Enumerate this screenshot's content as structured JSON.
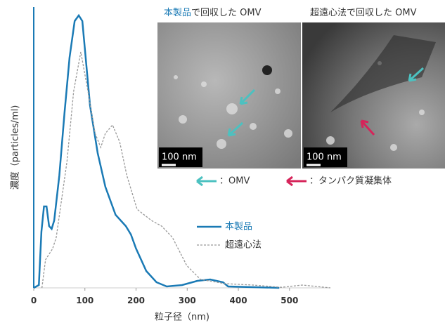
{
  "chart_data": {
    "type": "line",
    "xlabel": "粒子径（nm)",
    "ylabel": "濃度（particles/ml)",
    "xlim": [
      0,
      580
    ],
    "xticks": [
      0,
      100,
      200,
      300,
      400,
      500
    ],
    "ylim": [
      0,
      100
    ],
    "series": [
      {
        "name": "本製品",
        "color": "#1a7ab5",
        "style": "solid",
        "x": [
          0,
          10,
          15,
          20,
          25,
          30,
          35,
          40,
          50,
          60,
          70,
          80,
          88,
          95,
          100,
          110,
          125,
          140,
          160,
          180,
          190,
          200,
          220,
          240,
          260,
          290,
          320,
          345,
          370,
          380,
          480
        ],
        "values": [
          0,
          1,
          20,
          29,
          29,
          22,
          21,
          24,
          40,
          62,
          82,
          95,
          97,
          95,
          85,
          65,
          48,
          36,
          26,
          22,
          19,
          14,
          6,
          2,
          0.5,
          1,
          2.5,
          3,
          2,
          0.5,
          0
        ]
      },
      {
        "name": "超遠心法",
        "color": "#999999",
        "style": "dashed",
        "x": [
          16,
          23,
          37,
          44,
          65,
          78,
          92,
          106,
          120,
          131,
          140,
          154,
          168,
          182,
          202,
          230,
          250,
          271,
          299,
          326,
          374,
          429,
          484,
          525,
          580
        ],
        "values": [
          0,
          10,
          14,
          18,
          45,
          70,
          84,
          70,
          55,
          50,
          55,
          58,
          52,
          40,
          28,
          24,
          22,
          18,
          8,
          3,
          1.5,
          1,
          0.2,
          1,
          0
        ]
      }
    ]
  },
  "insets": {
    "left_title": {
      "highlight": "本製品",
      "rest": "で回収した OMV"
    },
    "right_title": "超遠心法で回収した OMV",
    "scale_bar": "100 nm",
    "arrow_legend": [
      "：OMV",
      "：タンパク質凝集体"
    ]
  }
}
